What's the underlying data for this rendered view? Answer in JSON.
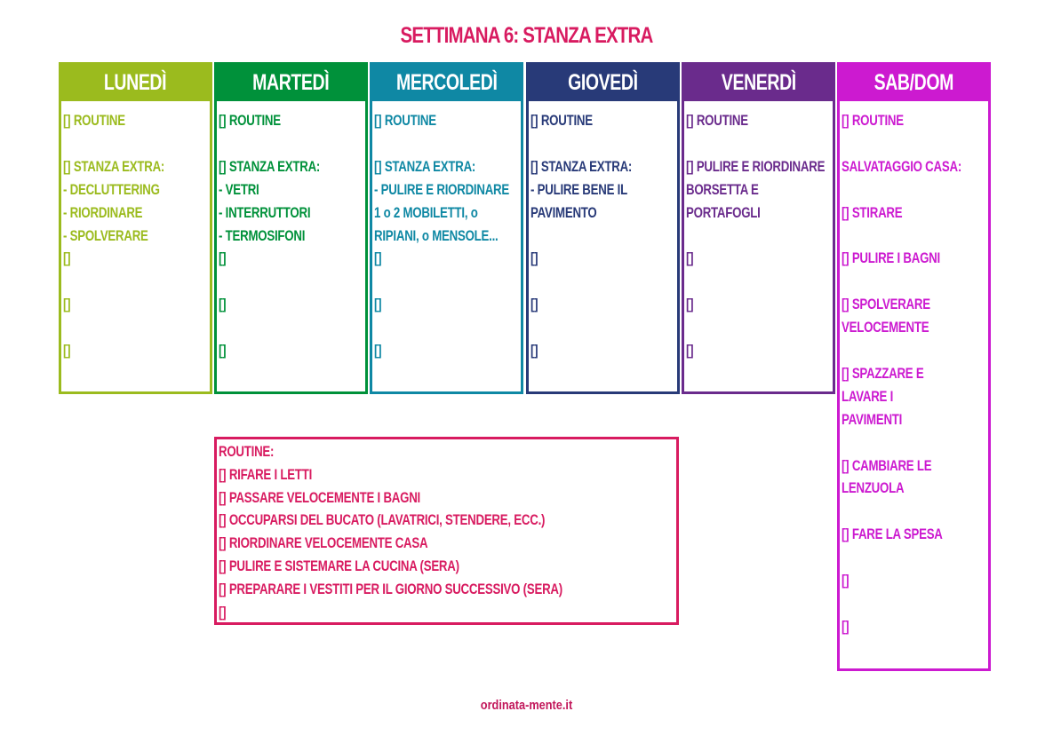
{
  "title": "SETTIMANA 6: STANZA EXTRA",
  "title_color": "#d81b60",
  "columns": [
    {
      "key": "lun",
      "header": "LUNEDÌ",
      "color": "#9bbb1e",
      "lines": [
        "[] ROUTINE",
        "",
        "[] STANZA EXTRA:",
        "- DECLUTTERING",
        "- RIORDINARE",
        "- SPOLVERARE",
        "[]",
        "",
        "[]",
        "",
        "[]"
      ]
    },
    {
      "key": "mar",
      "header": "MARTEDÌ",
      "color": "#00913a",
      "lines": [
        "[] ROUTINE",
        "",
        "[] STANZA EXTRA:",
        "- VETRI",
        "- INTERRUTTORI",
        "- TERMOSIFONI",
        "[]",
        "",
        "[]",
        "",
        "[]"
      ]
    },
    {
      "key": "mer",
      "header": "MERCOLEDÌ",
      "color": "#0f88a4",
      "lines": [
        "[] ROUTINE",
        "",
        "[] STANZA EXTRA:",
        "- PULIRE E RIORDINARE",
        "1 o 2 MOBILETTI, o",
        "RIPIANI, o MENSOLE...",
        "[]",
        "",
        "[]",
        "",
        "[]"
      ]
    },
    {
      "key": "gio",
      "header": "GIOVEDÌ",
      "color": "#283a78",
      "lines": [
        "[] ROUTINE",
        "",
        "[] STANZA EXTRA:",
        "- PULIRE BENE IL",
        "PAVIMENTO",
        "",
        "[]",
        "",
        "[]",
        "",
        "[]"
      ]
    },
    {
      "key": "ven",
      "header": "VENERDÌ",
      "color": "#6a2b8c",
      "lines": [
        "[] ROUTINE",
        "",
        "[] PULIRE E RIORDINARE",
        "BORSETTA E",
        "PORTAFOGLI",
        "",
        "[]",
        "",
        "[]",
        "",
        "[]"
      ]
    },
    {
      "key": "sab",
      "header": "SAB/DOM",
      "color": "#cc1ad0",
      "lines": [
        "[] ROUTINE",
        "",
        "SALVATAGGIO CASA:",
        "",
        "[] STIRARE",
        "",
        "[] PULIRE I BAGNI",
        "",
        "[] SPOLVERARE",
        "   VELOCEMENTE",
        "",
        "[] SPAZZARE E",
        "   LAVARE I",
        "   PAVIMENTI",
        "",
        "[] CAMBIARE LE",
        "   LENZUOLA",
        "",
        "[] FARE LA SPESA",
        "",
        "[]",
        "",
        "[]"
      ]
    }
  ],
  "routine": {
    "color": "#d81b60",
    "lines": [
      "ROUTINE:",
      "[] RIFARE I LETTI",
      "[] PASSARE VELOCEMENTE I BAGNI",
      "[] OCCUPARSI DEL BUCATO (LAVATRICI, STENDERE, ECC.)",
      "[] RIORDINARE VELOCEMENTE CASA",
      "[] PULIRE E SISTEMARE LA CUCINA (SERA)",
      "[] PREPARARE I VESTITI PER IL GIORNO SUCCESSIVO (SERA)",
      "[]"
    ]
  },
  "footer": "ordinata-mente.it"
}
